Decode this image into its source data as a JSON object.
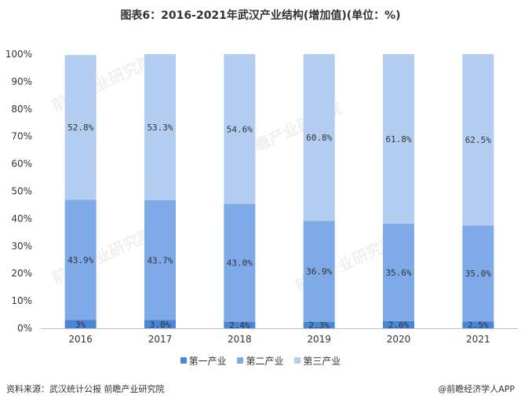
{
  "title": "图表6：2016-2021年武汉产业结构(增加值)(单位：%)",
  "footer": {
    "source": "资料来源：武汉统计公报 前瞻产业研究院",
    "brand": "@前瞻经济学人APP"
  },
  "watermark": "前瞻产业研究院",
  "colors": {
    "primary": "#4a86d8",
    "secondary": "#7eaae8",
    "tertiary": "#b2cdf0",
    "axis": "#bfbfbf",
    "text": "#333333"
  },
  "chart_data": {
    "type": "bar",
    "stacked": true,
    "categories": [
      "2016",
      "2017",
      "2018",
      "2019",
      "2020",
      "2021"
    ],
    "series": [
      {
        "name": "第一产业",
        "values": [
          3.0,
          3.0,
          2.4,
          2.3,
          2.6,
          2.5
        ],
        "labels": [
          "3%",
          "3.0%",
          "2.4%",
          "2.3%",
          "2.6%",
          "2.5%"
        ]
      },
      {
        "name": "第二产业",
        "values": [
          43.9,
          43.7,
          43.0,
          36.9,
          35.6,
          35.0
        ],
        "labels": [
          "43.9%",
          "43.7%",
          "43.0%",
          "36.9%",
          "35.6%",
          "35.0%"
        ]
      },
      {
        "name": "第三产业",
        "values": [
          52.8,
          53.3,
          54.6,
          60.8,
          61.8,
          62.5
        ],
        "labels": [
          "52.8%",
          "53.3%",
          "54.6%",
          "60.8%",
          "61.8%",
          "62.5%"
        ]
      }
    ],
    "yticks": [
      "0%",
      "10%",
      "20%",
      "30%",
      "40%",
      "50%",
      "60%",
      "70%",
      "80%",
      "90%",
      "100%"
    ],
    "ylim": [
      0,
      100
    ],
    "legend": "bottom"
  }
}
